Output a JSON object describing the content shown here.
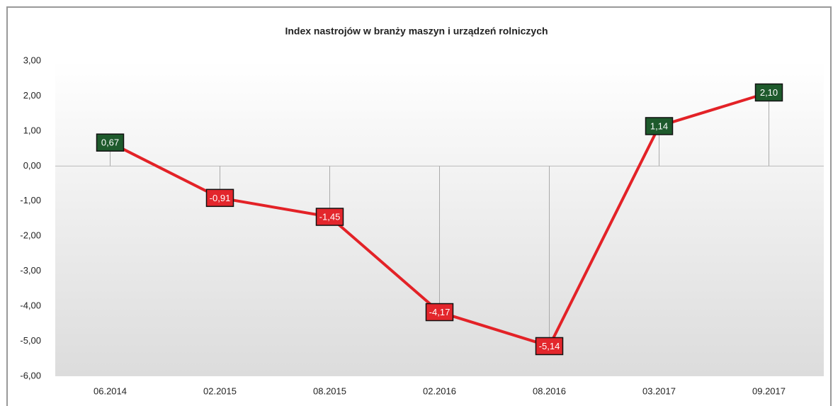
{
  "chart_data": {
    "type": "line",
    "title": "Index nastrojów w branży maszyn i urządzeń rolniczych",
    "categories": [
      "06.2014",
      "02.2015",
      "08.2015",
      "02.2016",
      "08.2016",
      "03.2017",
      "09.2017"
    ],
    "series": [
      {
        "name": "Index",
        "color": "#e32227",
        "values": [
          0.67,
          -0.91,
          -1.45,
          -4.17,
          -5.14,
          1.14,
          2.1
        ],
        "value_labels": [
          "0,67",
          "-0,91",
          "-1,45",
          "-4,17",
          "-5,14",
          "1,14",
          "2,10"
        ]
      }
    ],
    "label_colors": {
      "positive": "#1e5a2c",
      "negative": "#e3262c"
    },
    "ylim": [
      -6,
      3
    ],
    "yticks": [
      {
        "value": 3,
        "label": "3,00"
      },
      {
        "value": 2,
        "label": "2,00"
      },
      {
        "value": 1,
        "label": "1,00"
      },
      {
        "value": 0,
        "label": "0,00"
      },
      {
        "value": -1,
        "label": "-1,00"
      },
      {
        "value": -2,
        "label": "-2,00"
      },
      {
        "value": -3,
        "label": "-3,00"
      },
      {
        "value": -4,
        "label": "-4,00"
      },
      {
        "value": -5,
        "label": "-5,00"
      },
      {
        "value": -6,
        "label": "-6,00"
      }
    ]
  }
}
